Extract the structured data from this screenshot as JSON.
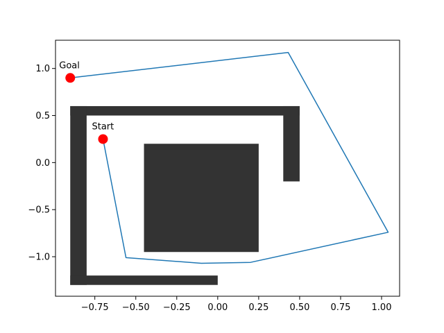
{
  "chart_data": {
    "type": "line",
    "title": "",
    "xlabel": "",
    "ylabel": "",
    "xlim": [
      -0.99,
      1.11
    ],
    "ylim": [
      -1.42,
      1.3
    ],
    "xticks": [
      -0.75,
      -0.5,
      -0.25,
      0.0,
      0.25,
      0.5,
      0.75,
      1.0
    ],
    "xtick_labels": [
      "−0.75",
      "−0.50",
      "−0.25",
      "0.00",
      "0.25",
      "0.50",
      "0.75",
      "1.00"
    ],
    "yticks": [
      -1.0,
      -0.5,
      0.0,
      0.5,
      1.0
    ],
    "ytick_labels": [
      "−1.0",
      "−0.5",
      "0.0",
      "0.5",
      "1.0"
    ],
    "grid": false,
    "obstacle_color": "#333333",
    "path_color": "#1f77b4",
    "marker_color": "#ff0000",
    "obstacles": [
      {
        "x0": -0.9,
        "x1": 0.5,
        "y0": 0.5,
        "y1": 0.6
      },
      {
        "x0": -0.9,
        "x1": -0.8,
        "y0": -1.3,
        "y1": 0.6
      },
      {
        "x0": -0.9,
        "x1": 0.0,
        "y0": -1.3,
        "y1": -1.2
      },
      {
        "x0": 0.4,
        "x1": 0.5,
        "y0": -0.2,
        "y1": 0.6
      },
      {
        "x0": -0.45,
        "x1": 0.25,
        "y0": -0.95,
        "y1": 0.2
      }
    ],
    "series": [
      {
        "x": [
          -0.7,
          -0.56,
          -0.1,
          0.2,
          1.04,
          0.43,
          -0.9
        ],
        "y": [
          0.25,
          -1.01,
          -1.07,
          -1.06,
          -0.74,
          1.17,
          0.9
        ]
      }
    ],
    "points": [
      {
        "label": "Start",
        "x": -0.7,
        "y": 0.25
      },
      {
        "label": "Goal",
        "x": -0.9,
        "y": 0.9
      }
    ]
  }
}
